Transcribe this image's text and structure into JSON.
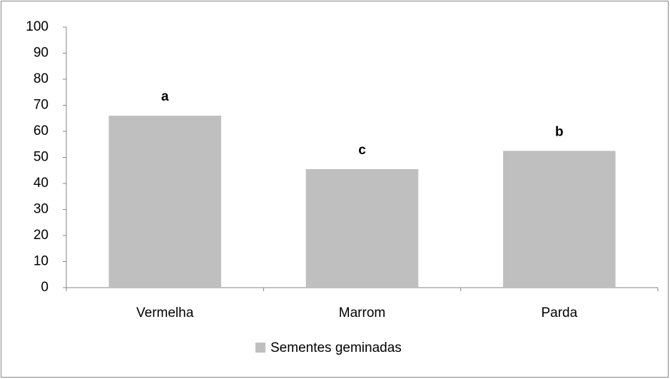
{
  "chart_data": {
    "type": "bar",
    "categories": [
      "Vermelha",
      "Marrom",
      "Parda"
    ],
    "series": [
      {
        "name": "Sementes geminadas",
        "color": "#bfbfbf",
        "values": [
          66,
          45.5,
          52.5
        ]
      }
    ],
    "annotations": [
      "a",
      "c",
      "b"
    ],
    "ylim": [
      0,
      100
    ],
    "yticks": [
      0,
      10,
      20,
      30,
      40,
      50,
      60,
      70,
      80,
      90,
      100
    ],
    "grid": false,
    "legend": "bottom"
  }
}
